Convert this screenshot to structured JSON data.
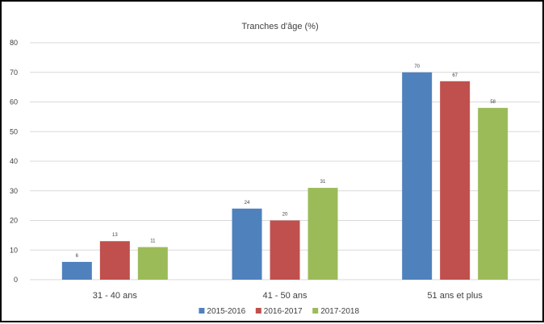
{
  "chart_data": {
    "type": "bar",
    "title": "Tranches d'âge (%)",
    "categories": [
      "31 - 40 ans",
      "41 - 50 ans",
      "51 ans et plus"
    ],
    "series": [
      {
        "name": "2015-2016",
        "color": "#4f81bd",
        "values": [
          6,
          24,
          70
        ]
      },
      {
        "name": "2016-2017",
        "color": "#c0504d",
        "values": [
          13,
          20,
          67
        ]
      },
      {
        "name": "2017-2018",
        "color": "#9bbb59",
        "values": [
          11,
          31,
          58
        ]
      }
    ],
    "ylim": [
      0,
      80
    ],
    "yticks": [
      0,
      10,
      20,
      30,
      40,
      50,
      60,
      70,
      80
    ],
    "grid": true,
    "legend_position": "bottom",
    "xlabel": "",
    "ylabel": ""
  }
}
